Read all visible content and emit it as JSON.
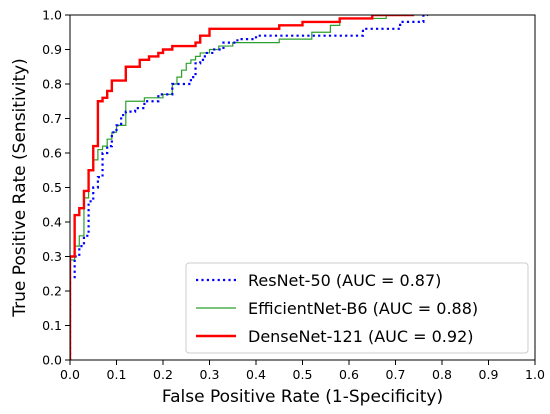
{
  "chart_data": {
    "type": "line",
    "xlabel": "False Positive Rate (1-Specificity)",
    "ylabel": "True Positive Rate (Sensitivity)",
    "xlim": [
      0.0,
      1.0
    ],
    "ylim": [
      0.0,
      1.0
    ],
    "xticks": [
      "0.0",
      "0.1",
      "0.2",
      "0.3",
      "0.4",
      "0.5",
      "0.6",
      "0.7",
      "0.8",
      "0.9",
      "1.0"
    ],
    "yticks": [
      "0.0",
      "0.1",
      "0.2",
      "0.3",
      "0.4",
      "0.5",
      "0.6",
      "0.7",
      "0.8",
      "0.9",
      "1.0"
    ],
    "grid": false,
    "legend_position": "bottom-right",
    "series": [
      {
        "name": "ResNet-50 (AUC = 0.87)",
        "color": "#0000ff",
        "line_style": "dotted",
        "x": [
          0.0,
          0.0,
          0.01,
          0.01,
          0.02,
          0.02,
          0.03,
          0.03,
          0.04,
          0.04,
          0.05,
          0.05,
          0.06,
          0.06,
          0.07,
          0.07,
          0.08,
          0.08,
          0.09,
          0.09,
          0.1,
          0.1,
          0.11,
          0.11,
          0.12,
          0.12,
          0.14,
          0.14,
          0.16,
          0.16,
          0.19,
          0.19,
          0.22,
          0.22,
          0.23,
          0.23,
          0.26,
          0.26,
          0.27,
          0.27,
          0.28,
          0.28,
          0.29,
          0.29,
          0.31,
          0.31,
          0.33,
          0.33,
          0.36,
          0.36,
          0.4,
          0.4,
          0.45,
          0.45,
          0.52,
          0.52,
          0.63,
          0.63,
          0.66,
          0.66,
          0.71,
          0.71,
          0.74,
          0.74,
          0.76,
          0.76,
          0.77
        ],
        "y": [
          0.0,
          0.24,
          0.24,
          0.3,
          0.3,
          0.33,
          0.33,
          0.36,
          0.36,
          0.46,
          0.46,
          0.5,
          0.5,
          0.53,
          0.53,
          0.6,
          0.6,
          0.62,
          0.62,
          0.66,
          0.66,
          0.68,
          0.68,
          0.71,
          0.71,
          0.72,
          0.72,
          0.73,
          0.73,
          0.75,
          0.75,
          0.77,
          0.77,
          0.8,
          0.8,
          0.8,
          0.8,
          0.82,
          0.82,
          0.86,
          0.86,
          0.87,
          0.87,
          0.89,
          0.89,
          0.9,
          0.9,
          0.92,
          0.92,
          0.93,
          0.93,
          0.94,
          0.94,
          0.94,
          0.94,
          0.94,
          0.94,
          0.96,
          0.96,
          0.96,
          0.96,
          0.98,
          0.98,
          0.98,
          0.98,
          1.0,
          1.0
        ]
      },
      {
        "name": "EfficientNet-B6 (AUC = 0.88)",
        "color": "#2ca02c",
        "line_style": "solid",
        "x": [
          0.0,
          0.0,
          0.01,
          0.01,
          0.02,
          0.02,
          0.03,
          0.03,
          0.04,
          0.04,
          0.05,
          0.05,
          0.06,
          0.06,
          0.07,
          0.07,
          0.08,
          0.08,
          0.09,
          0.09,
          0.1,
          0.1,
          0.12,
          0.12,
          0.13,
          0.13,
          0.16,
          0.16,
          0.2,
          0.2,
          0.22,
          0.22,
          0.23,
          0.23,
          0.24,
          0.24,
          0.25,
          0.25,
          0.26,
          0.26,
          0.27,
          0.27,
          0.28,
          0.28,
          0.3,
          0.3,
          0.32,
          0.32,
          0.35,
          0.35,
          0.45,
          0.45,
          0.52,
          0.52,
          0.56,
          0.56,
          0.58,
          0.58,
          0.62,
          0.62,
          0.68,
          0.68,
          0.74
        ],
        "y": [
          0.0,
          0.29,
          0.29,
          0.33,
          0.33,
          0.36,
          0.36,
          0.47,
          0.47,
          0.55,
          0.55,
          0.58,
          0.58,
          0.61,
          0.61,
          0.62,
          0.62,
          0.64,
          0.64,
          0.66,
          0.66,
          0.68,
          0.68,
          0.75,
          0.75,
          0.75,
          0.75,
          0.76,
          0.76,
          0.77,
          0.77,
          0.8,
          0.8,
          0.82,
          0.82,
          0.84,
          0.84,
          0.86,
          0.86,
          0.87,
          0.87,
          0.88,
          0.88,
          0.89,
          0.89,
          0.9,
          0.9,
          0.91,
          0.91,
          0.92,
          0.92,
          0.93,
          0.93,
          0.95,
          0.95,
          0.97,
          0.97,
          0.99,
          0.99,
          0.99,
          0.99,
          1.0,
          1.0
        ]
      },
      {
        "name": "DenseNet-121 (AUC = 0.92)",
        "color": "#ff0000",
        "line_style": "solid",
        "x": [
          0.0,
          0.0,
          0.01,
          0.01,
          0.02,
          0.02,
          0.03,
          0.03,
          0.04,
          0.04,
          0.05,
          0.05,
          0.06,
          0.06,
          0.07,
          0.07,
          0.08,
          0.08,
          0.09,
          0.09,
          0.12,
          0.12,
          0.13,
          0.13,
          0.15,
          0.15,
          0.17,
          0.17,
          0.19,
          0.19,
          0.2,
          0.2,
          0.22,
          0.22,
          0.27,
          0.27,
          0.28,
          0.28,
          0.3,
          0.3,
          0.45,
          0.45,
          0.5,
          0.5,
          0.58,
          0.58,
          0.65,
          0.65,
          0.74
        ],
        "y": [
          0.0,
          0.3,
          0.3,
          0.42,
          0.42,
          0.44,
          0.44,
          0.49,
          0.49,
          0.55,
          0.55,
          0.62,
          0.62,
          0.75,
          0.75,
          0.76,
          0.76,
          0.78,
          0.78,
          0.81,
          0.81,
          0.85,
          0.85,
          0.85,
          0.85,
          0.87,
          0.87,
          0.88,
          0.88,
          0.89,
          0.89,
          0.9,
          0.9,
          0.91,
          0.91,
          0.92,
          0.92,
          0.94,
          0.94,
          0.96,
          0.96,
          0.97,
          0.97,
          0.98,
          0.98,
          0.99,
          0.99,
          1.0,
          1.0
        ]
      }
    ]
  }
}
